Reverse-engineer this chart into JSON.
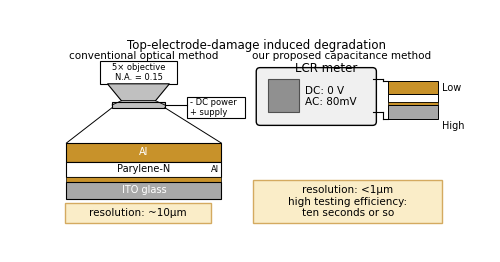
{
  "title": "Top-electrode-damage induced degradation",
  "left_label": "conventional optical method",
  "right_label": "our proposed capacitance method",
  "objective_text": "5× objective\nN.A. = 0.15",
  "dc_power_text": "- DC power\n+ supply",
  "lcr_text": "LCR meter",
  "lcr_settings": "DC: 0 V\nAC: 80mV",
  "low_label": "Low",
  "high_label": "High",
  "al_label": "Al",
  "parylene_label": "Parylene-N",
  "ito_label": "ITO glass",
  "al_small_label": "Al",
  "resolution_left": "resolution: ~10μm",
  "resolution_right": "resolution: <1μm\nhigh testing efficiency:\nten seconds or so",
  "color_al": "#c8922a",
  "color_parylene": "#ffffff",
  "color_ito": "#a8a8a8",
  "color_box_bg": "#faedc8",
  "color_box_border": "#d4aa60",
  "color_lcr_bg": "#f0f0f0",
  "color_lcr_screen": "#909090",
  "color_stage": "#c0c0c0"
}
